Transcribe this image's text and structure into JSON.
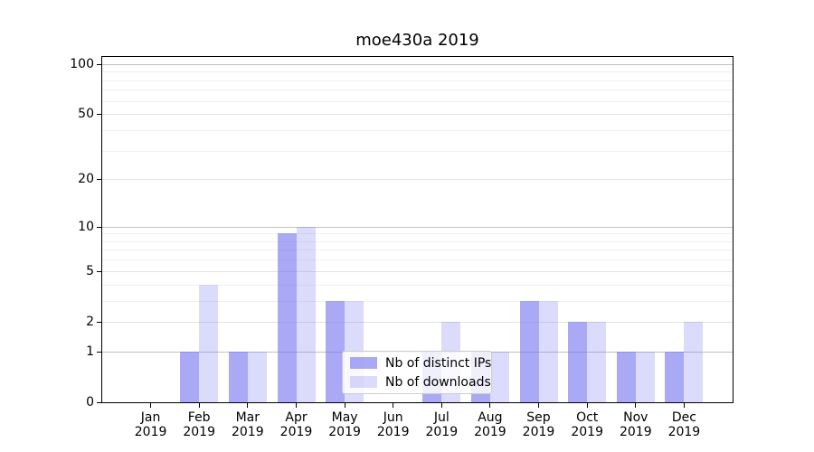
{
  "chart_data": {
    "type": "bar",
    "title": "moe430a 2019",
    "categories": [
      "Jan 2019",
      "Feb 2019",
      "Mar 2019",
      "Apr 2019",
      "May 2019",
      "Jun 2019",
      "Jul 2019",
      "Aug 2019",
      "Sep 2019",
      "Oct 2019",
      "Nov 2019",
      "Dec 2019"
    ],
    "x_months": [
      "Jan",
      "Feb",
      "Mar",
      "Apr",
      "May",
      "Jun",
      "Jul",
      "Aug",
      "Sep",
      "Oct",
      "Nov",
      "Dec"
    ],
    "x_year": "2019",
    "series": [
      {
        "name": "Nb of distinct IPs",
        "values": [
          0,
          1,
          1,
          9,
          3,
          0,
          1,
          1,
          3,
          2,
          1,
          1
        ],
        "color": "rgba(112,112,238,0.6)"
      },
      {
        "name": "Nb of downloads",
        "values": [
          0,
          4,
          1,
          10,
          3,
          0,
          2,
          1,
          3,
          2,
          1,
          2
        ],
        "color": "rgba(112,112,238,0.25)"
      }
    ],
    "y_scale": "log10(1+value)",
    "y_ticks": [
      0,
      1,
      2,
      5,
      10,
      20,
      50,
      100
    ],
    "y_tick_labels": [
      "0",
      "1",
      "2",
      "5",
      "10",
      "20",
      "50",
      "100"
    ],
    "ylim": [
      0,
      110
    ],
    "grid": "horizontal",
    "legend_position": "lower center, overlapping plot"
  },
  "colors": {
    "bar_dark": "rgba(112,112,238,0.6)",
    "bar_light": "rgba(112,112,238,0.25)",
    "grid_decade": "#c2c2c2",
    "grid_labeled": "#e3e3e3",
    "grid_minor": "#f0f0f0",
    "axis": "#000000",
    "legend_border": "#cccccc"
  }
}
